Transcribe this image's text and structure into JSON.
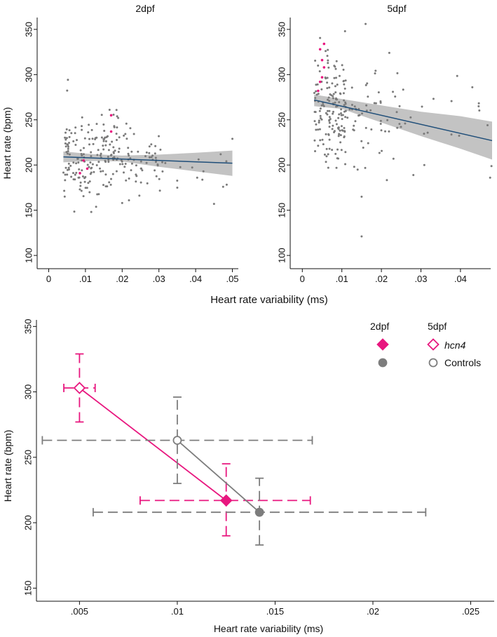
{
  "colors": {
    "hcn4": "#e8177f",
    "control": "#7d7d7d",
    "fit_line": "#1f4e79",
    "ci_band": "#b8b8b8",
    "point": "#7a7a7a"
  },
  "shared": {
    "top_xlabel": "Heart rate variability (ms)"
  },
  "chart_data": [
    {
      "type": "scatter",
      "title": "2dpf",
      "xlabel": "",
      "ylabel": "Heart rate (bpm)",
      "xlim": [
        -0.002,
        0.052
      ],
      "ylim": [
        90,
        360
      ],
      "xticks": [
        0,
        0.01,
        0.02,
        0.03,
        0.04,
        0.05
      ],
      "xtick_labels": [
        "0",
        ".01",
        ".02",
        ".03",
        ".04",
        ".05"
      ],
      "yticks": [
        100,
        150,
        200,
        250,
        300,
        350
      ],
      "ytick_labels": [
        "100",
        "150",
        "200",
        "250",
        "300",
        "350"
      ],
      "fit": {
        "x0": 0.004,
        "y0": 209,
        "x1": 0.05,
        "y1": 202
      },
      "ci": {
        "upper": [
          [
            0.004,
            215
          ],
          [
            0.012,
            212
          ],
          [
            0.02,
            210.5
          ],
          [
            0.03,
            211.5
          ],
          [
            0.04,
            213.5
          ],
          [
            0.05,
            216
          ]
        ],
        "lower": [
          [
            0.004,
            203
          ],
          [
            0.012,
            204.5
          ],
          [
            0.02,
            204
          ],
          [
            0.03,
            198
          ],
          [
            0.04,
            193
          ],
          [
            0.05,
            188
          ]
        ]
      },
      "highlight_points": [
        [
          0.017,
          255
        ],
        [
          0.017,
          237
        ],
        [
          0.0095,
          205
        ],
        [
          0.0105,
          196
        ],
        [
          0.0085,
          191
        ]
      ],
      "sample_points": {
        "seed": 11,
        "groups": [
          {
            "n": 190,
            "x_range": [
              0.004,
              0.022
            ],
            "y_mean": 209,
            "y_sd": 24
          },
          {
            "n": 45,
            "x_range": [
              0.022,
              0.031
            ],
            "y_mean": 205,
            "y_sd": 18
          },
          {
            "n": 12,
            "x_range": [
              0.031,
              0.05
            ],
            "y_mean": 193,
            "y_sd": 16
          }
        ],
        "extra": [
          [
            0.045,
            157
          ],
          [
            0.05,
            229
          ],
          [
            0.02,
            158
          ],
          [
            0.035,
            175
          ]
        ]
      }
    },
    {
      "type": "scatter",
      "title": "5dpf",
      "xlabel": "",
      "ylabel": "",
      "xlim": [
        -0.002,
        0.048
      ],
      "ylim": [
        90,
        360
      ],
      "xticks": [
        0,
        0.01,
        0.02,
        0.03,
        0.04
      ],
      "xtick_labels": [
        "0",
        ".01",
        ".02",
        ".03",
        ".04"
      ],
      "yticks": [
        100,
        150,
        200,
        250,
        300,
        350
      ],
      "ytick_labels": [
        "100",
        "150",
        "200",
        "250",
        "300",
        "350"
      ],
      "fit": {
        "x0": 0.003,
        "y0": 272,
        "x1": 0.048,
        "y1": 227
      },
      "ci": {
        "upper": [
          [
            0.003,
            278
          ],
          [
            0.01,
            273
          ],
          [
            0.02,
            266
          ],
          [
            0.03,
            259
          ],
          [
            0.04,
            254
          ],
          [
            0.048,
            248
          ]
        ],
        "lower": [
          [
            0.003,
            265
          ],
          [
            0.01,
            262
          ],
          [
            0.02,
            247
          ],
          [
            0.03,
            232
          ],
          [
            0.04,
            218
          ],
          [
            0.048,
            206
          ]
        ]
      },
      "highlight_points": [
        [
          0.0055,
          334
        ],
        [
          0.0045,
          328
        ],
        [
          0.005,
          316
        ],
        [
          0.0055,
          308
        ],
        [
          0.005,
          297
        ],
        [
          0.0045,
          292
        ],
        [
          0.004,
          282
        ]
      ],
      "sample_points": {
        "seed": 7,
        "groups": [
          {
            "n": 160,
            "x_range": [
              0.003,
              0.011
            ],
            "y_mean": 260,
            "y_sd": 30
          },
          {
            "n": 55,
            "x_range": [
              0.011,
              0.025
            ],
            "y_mean": 252,
            "y_sd": 26
          },
          {
            "n": 18,
            "x_range": [
              0.025,
              0.048
            ],
            "y_mean": 245,
            "y_sd": 28
          }
        ],
        "extra": [
          [
            0.016,
            356
          ],
          [
            0.015,
            121
          ],
          [
            0.015,
            165
          ],
          [
            0.0475,
            186
          ],
          [
            0.043,
            286
          ],
          [
            0.022,
            324
          ]
        ]
      }
    },
    {
      "type": "scatter",
      "title": "",
      "xlabel": "Heart rate variability (ms)",
      "ylabel": "Heart rate (bpm)",
      "xlim": [
        0.0028,
        0.0262
      ],
      "ylim": [
        140,
        355
      ],
      "xticks": [
        0.005,
        0.01,
        0.015,
        0.02,
        0.025
      ],
      "xtick_labels": [
        ".005",
        ".01",
        ".015",
        ".02",
        ".025"
      ],
      "yticks": [
        150,
        200,
        250,
        300,
        350
      ],
      "ytick_labels": [
        "150",
        "200",
        "250",
        "300",
        "350"
      ],
      "series": [
        {
          "name": "hcn4",
          "color_key": "hcn4",
          "points": [
            {
              "stage": "5dpf",
              "x": 0.005,
              "y": 303,
              "xerr": [
                0.0042,
                0.0058
              ],
              "yerr": [
                277,
                329
              ],
              "marker": "diamond-open"
            },
            {
              "stage": "2dpf",
              "x": 0.0125,
              "y": 217,
              "xerr": [
                0.0081,
                0.0168
              ],
              "yerr": [
                190,
                245
              ],
              "marker": "diamond-filled"
            }
          ]
        },
        {
          "name": "Controls",
          "color_key": "control",
          "points": [
            {
              "stage": "5dpf",
              "x": 0.01,
              "y": 263,
              "xerr": [
                0.0031,
                0.0169
              ],
              "yerr": [
                230,
                296
              ],
              "marker": "circle-open"
            },
            {
              "stage": "2dpf",
              "x": 0.0142,
              "y": 208,
              "xerr": [
                0.0057,
                0.0227
              ],
              "yerr": [
                183,
                234
              ],
              "marker": "circle-filled"
            }
          ]
        }
      ],
      "legend": {
        "col_2dpf": "2dpf",
        "col_5dpf": "5dpf",
        "hcn4_label": "hcn4",
        "controls_label": "Controls",
        "placement": "top-right"
      }
    }
  ]
}
